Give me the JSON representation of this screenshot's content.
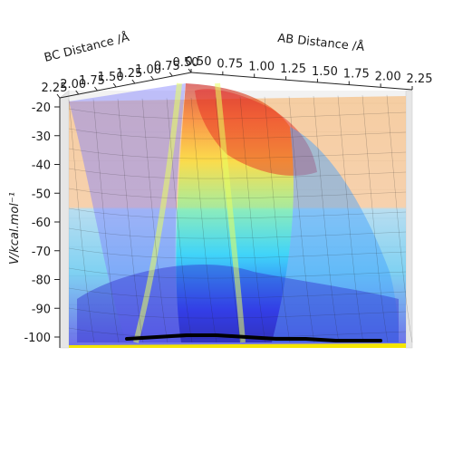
{
  "chart_data": {
    "type": "surface3d",
    "title": "",
    "xlabel": "AB Distance /Å",
    "ylabel": "BC Distance /Å",
    "zlabel": "V/kcal.mol⁻¹",
    "x_ticks": [
      "0.50",
      "0.75",
      "1.00",
      "1.25",
      "1.50",
      "1.75",
      "2.00",
      "2.25"
    ],
    "y_ticks": [
      "2.25",
      "2.00",
      "1.75",
      "1.50",
      "1.25",
      "1.00",
      "0.75",
      "0.50"
    ],
    "z_ticks": [
      "-20",
      "-30",
      "-40",
      "-50",
      "-60",
      "-70",
      "-80",
      "-90",
      "-100"
    ],
    "xlim": [
      0.5,
      2.25
    ],
    "ylim": [
      0.5,
      2.25
    ],
    "zlim": [
      -104,
      -20
    ],
    "colormap": "jet",
    "surface_alpha": 0.35,
    "grid": true,
    "back_face_profile": {
      "description_key": "energy along AB at large BC",
      "x": [
        0.5,
        0.6,
        0.7,
        0.8,
        1.0,
        1.25,
        1.5,
        1.75,
        2.0,
        2.25
      ],
      "z": [
        -20,
        -35,
        -60,
        -85,
        -100,
        -103,
        -103,
        -103,
        -103,
        -103
      ]
    },
    "trajectory": {
      "color": "#000000",
      "x": [
        0.55,
        0.75,
        0.95,
        1.15,
        1.35,
        1.55,
        1.75,
        1.95,
        2.15,
        2.25
      ],
      "z": [
        -101,
        -100,
        -99,
        -99,
        -100,
        -101,
        -101,
        -102,
        -102,
        -102
      ]
    },
    "contour_floor_color": "#f5e600"
  }
}
